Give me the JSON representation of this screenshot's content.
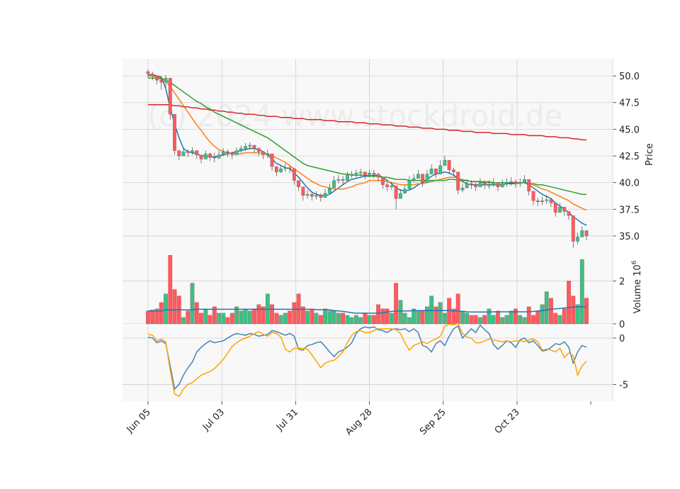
{
  "watermark": "(c) 2024 www.stockdroid.de",
  "colors": {
    "up": "#3dbf85",
    "down": "#ff5a5f",
    "ma_fast": "#1f77b4",
    "ma_mid": "#ff7f0e",
    "ma_slow": "#2ca02c",
    "ma_long": "#d62728",
    "macd": "#4682b4",
    "signal": "#ffa500",
    "vol_avg": "#1f77b4",
    "grid": "#d0d0d0",
    "panel_bg": "#f8f8f8"
  },
  "chart_data": [
    {
      "type": "candlestick",
      "ylabel": "Price",
      "ylim": [
        33.8,
        51.6
      ],
      "yticks": [
        "35.0",
        "37.5",
        "40.0",
        "42.5",
        "45.0",
        "47.5",
        "50.0"
      ],
      "xticks": [
        "Jun 05",
        "Jul 03",
        "Jul 31",
        "Aug 28",
        "Sep 25",
        "Oct 23"
      ],
      "close": [
        50.2,
        50.0,
        49.6,
        49.4,
        49.8,
        46.4,
        43.0,
        42.5,
        42.9,
        42.8,
        43.0,
        42.6,
        42.2,
        42.7,
        42.4,
        42.3,
        42.6,
        42.9,
        42.8,
        42.6,
        43.0,
        43.2,
        43.4,
        43.5,
        43.2,
        42.9,
        42.6,
        42.7,
        41.5,
        41.0,
        41.3,
        41.4,
        41.3,
        40.2,
        39.6,
        38.8,
        38.9,
        38.7,
        38.8,
        38.6,
        39.0,
        39.5,
        40.2,
        40.3,
        40.2,
        40.7,
        40.8,
        40.9,
        41.0,
        40.7,
        40.9,
        40.8,
        40.5,
        39.8,
        39.6,
        39.7,
        38.5,
        39.0,
        39.4,
        40.2,
        40.4,
        40.8,
        40.0,
        40.8,
        41.3,
        40.8,
        41.6,
        42.1,
        41.2,
        41.0,
        39.3,
        39.5,
        39.9,
        39.8,
        39.6,
        40.0,
        39.8,
        39.8,
        40.0,
        39.6,
        39.9,
        40.0,
        40.1,
        39.9,
        40.0,
        40.3,
        39.2,
        38.3,
        38.2,
        38.3,
        38.4,
        38.1,
        37.2,
        37.7,
        37.3,
        36.9,
        34.5,
        34.9,
        35.5,
        35.0
      ],
      "high": [
        50.6,
        50.4,
        50.0,
        49.9,
        50.1,
        46.9,
        43.4,
        42.9,
        43.2,
        43.1,
        43.3,
        42.9,
        42.6,
        43.0,
        42.8,
        42.8,
        43.0,
        43.2,
        43.1,
        42.9,
        43.3,
        43.5,
        43.7,
        43.8,
        43.5,
        43.3,
        42.9,
        43.1,
        41.9,
        41.4,
        41.6,
        41.8,
        41.6,
        40.6,
        40.0,
        39.2,
        39.3,
        39.0,
        39.2,
        39.0,
        39.4,
        39.9,
        40.6,
        40.7,
        40.6,
        41.0,
        41.1,
        41.2,
        41.3,
        41.0,
        41.2,
        41.2,
        40.9,
        40.2,
        40.0,
        40.1,
        38.9,
        39.4,
        39.8,
        40.6,
        40.8,
        41.2,
        40.4,
        41.2,
        41.7,
        41.3,
        42.1,
        42.5,
        41.6,
        41.4,
        39.7,
        39.9,
        40.3,
        40.2,
        40.0,
        40.4,
        40.2,
        40.2,
        40.4,
        40.0,
        40.3,
        40.4,
        40.5,
        40.3,
        40.4,
        40.7,
        39.6,
        38.7,
        38.6,
        38.7,
        38.8,
        38.5,
        37.6,
        38.1,
        37.7,
        37.3,
        35.0,
        35.3,
        35.9,
        35.4
      ],
      "low": [
        49.8,
        49.6,
        49.2,
        48.7,
        48.9,
        45.9,
        42.6,
        42.1,
        42.5,
        42.4,
        42.6,
        42.2,
        41.8,
        42.3,
        42.0,
        41.9,
        42.2,
        42.5,
        42.4,
        42.2,
        42.6,
        42.8,
        43.0,
        43.1,
        42.8,
        42.5,
        42.2,
        42.3,
        41.1,
        40.6,
        40.9,
        41.0,
        40.9,
        39.8,
        39.2,
        38.3,
        38.5,
        38.3,
        38.4,
        38.2,
        38.6,
        39.1,
        39.8,
        39.9,
        39.8,
        40.3,
        40.4,
        40.5,
        40.6,
        40.3,
        40.5,
        40.4,
        40.1,
        39.4,
        39.2,
        39.3,
        37.5,
        38.6,
        39.0,
        39.8,
        40.0,
        40.4,
        39.6,
        40.4,
        40.9,
        40.4,
        41.2,
        41.7,
        40.8,
        40.6,
        38.9,
        39.1,
        39.5,
        39.4,
        39.2,
        39.6,
        39.4,
        39.4,
        39.6,
        39.2,
        39.5,
        39.6,
        39.7,
        39.5,
        39.6,
        39.9,
        38.8,
        37.9,
        37.8,
        37.9,
        38.0,
        37.7,
        36.8,
        37.3,
        36.9,
        36.5,
        33.9,
        34.2,
        35.1,
        34.6
      ],
      "series": [
        {
          "name": "",
          "values": [
            50.1,
            50.1,
            50.0,
            49.9,
            48.8,
            47.0,
            45.5,
            44.2,
            43.2,
            42.9,
            42.8,
            42.7,
            42.5,
            42.5,
            42.4,
            42.4,
            42.5,
            42.6,
            42.7,
            42.8,
            42.9,
            43.0,
            43.1,
            43.2,
            43.2,
            43.1,
            42.9,
            42.6,
            42.2,
            41.8,
            41.6,
            41.4,
            41.3,
            40.9,
            40.5,
            40.0,
            39.5,
            39.1,
            38.9,
            38.8,
            38.8,
            38.9,
            39.2,
            39.5,
            39.8,
            40.1,
            40.3,
            40.4,
            40.5,
            40.6,
            40.6,
            40.7,
            40.7,
            40.5,
            40.2,
            39.9,
            39.5,
            39.3,
            39.2,
            39.3,
            39.5,
            39.8,
            40.0,
            40.3,
            40.6,
            40.8,
            40.9,
            41.0,
            40.9,
            40.7,
            40.4,
            40.1,
            39.9,
            39.8,
            39.8,
            39.8,
            39.8,
            39.8,
            39.8,
            39.8,
            39.8,
            39.9,
            39.9,
            39.9,
            40.0,
            40.0,
            39.8,
            39.5,
            39.2,
            38.9,
            38.7,
            38.5,
            38.1,
            37.8,
            37.5,
            37.2,
            36.8,
            36.5,
            36.2,
            36.0
          ]
        },
        {
          "name": "",
          "values": [
            50.0,
            50.0,
            49.9,
            49.8,
            49.5,
            49.0,
            48.4,
            47.8,
            47.2,
            46.6,
            46.0,
            45.4,
            44.9,
            44.3,
            43.8,
            43.4,
            43.1,
            42.9,
            42.8,
            42.7,
            42.7,
            42.7,
            42.8,
            42.8,
            42.8,
            42.8,
            42.7,
            42.7,
            42.5,
            42.3,
            42.1,
            41.9,
            41.6,
            41.3,
            41.0,
            40.7,
            40.4,
            40.1,
            39.9,
            39.7,
            39.6,
            39.5,
            39.4,
            39.4,
            39.4,
            39.5,
            39.6,
            39.8,
            39.9,
            40.0,
            40.2,
            40.2,
            40.2,
            40.2,
            40.1,
            40.0,
            39.9,
            39.8,
            39.8,
            39.8,
            39.8,
            39.9,
            39.9,
            40.0,
            40.1,
            40.2,
            40.3,
            40.4,
            40.5,
            40.5,
            40.4,
            40.3,
            40.2,
            40.1,
            40.1,
            40.1,
            40.1,
            40.1,
            40.0,
            40.0,
            40.0,
            40.0,
            40.0,
            40.0,
            40.0,
            40.0,
            39.9,
            39.8,
            39.6,
            39.4,
            39.3,
            39.1,
            38.9,
            38.7,
            38.5,
            38.3,
            38.0,
            37.8,
            37.6,
            37.4
          ]
        },
        {
          "name": "",
          "values": [
            49.8,
            49.8,
            49.8,
            49.7,
            49.6,
            49.4,
            49.1,
            48.8,
            48.5,
            48.2,
            47.9,
            47.6,
            47.4,
            47.1,
            46.9,
            46.6,
            46.4,
            46.2,
            46.0,
            45.8,
            45.6,
            45.4,
            45.2,
            45.0,
            44.8,
            44.6,
            44.4,
            44.2,
            43.9,
            43.6,
            43.3,
            43.0,
            42.7,
            42.4,
            42.1,
            41.8,
            41.6,
            41.5,
            41.4,
            41.3,
            41.2,
            41.1,
            41.0,
            40.9,
            40.8,
            40.8,
            40.7,
            40.7,
            40.7,
            40.7,
            40.6,
            40.6,
            40.6,
            40.5,
            40.5,
            40.4,
            40.3,
            40.3,
            40.3,
            40.2,
            40.2,
            40.2,
            40.2,
            40.2,
            40.2,
            40.2,
            40.2,
            40.2,
            40.3,
            40.3,
            40.2,
            40.2,
            40.2,
            40.1,
            40.1,
            40.1,
            40.0,
            40.0,
            40.0,
            40.0,
            40.0,
            40.0,
            40.0,
            40.0,
            40.0,
            40.0,
            39.9,
            39.9,
            39.8,
            39.8,
            39.7,
            39.6,
            39.5,
            39.4,
            39.3,
            39.2,
            39.1,
            39.0,
            38.9,
            38.9
          ]
        },
        {
          "name": "",
          "values": [
            47.3,
            47.3,
            47.3,
            47.3,
            47.3,
            47.3,
            47.2,
            47.2,
            47.1,
            47.1,
            47.0,
            47.0,
            46.9,
            46.9,
            46.8,
            46.8,
            46.7,
            46.7,
            46.6,
            46.6,
            46.5,
            46.5,
            46.4,
            46.4,
            46.4,
            46.3,
            46.3,
            46.2,
            46.2,
            46.2,
            46.1,
            46.1,
            46.1,
            46.0,
            46.0,
            46.0,
            45.9,
            45.9,
            45.9,
            45.9,
            45.8,
            45.8,
            45.8,
            45.7,
            45.7,
            45.7,
            45.7,
            45.6,
            45.6,
            45.6,
            45.5,
            45.5,
            45.5,
            45.4,
            45.4,
            45.4,
            45.3,
            45.3,
            45.3,
            45.2,
            45.2,
            45.2,
            45.1,
            45.1,
            45.1,
            45.0,
            45.0,
            45.0,
            44.9,
            44.9,
            44.9,
            44.8,
            44.8,
            44.8,
            44.7,
            44.7,
            44.7,
            44.7,
            44.6,
            44.6,
            44.6,
            44.6,
            44.5,
            44.5,
            44.5,
            44.5,
            44.4,
            44.4,
            44.4,
            44.4,
            44.3,
            44.3,
            44.3,
            44.2,
            44.2,
            44.2,
            44.1,
            44.1,
            44.0,
            44.0
          ]
        }
      ]
    },
    {
      "type": "bar",
      "ylabel": "Volume  10^6",
      "ylim": [
        0,
        3.5
      ],
      "yticks": [
        "0",
        "2"
      ],
      "values": [
        0.6,
        0.65,
        0.7,
        1.0,
        1.4,
        3.2,
        1.6,
        1.3,
        0.3,
        0.6,
        1.9,
        1.0,
        0.5,
        0.7,
        0.4,
        0.8,
        0.5,
        0.5,
        0.3,
        0.5,
        0.8,
        0.6,
        0.7,
        0.6,
        0.7,
        0.9,
        0.8,
        1.4,
        0.9,
        0.5,
        0.4,
        0.5,
        0.6,
        1.0,
        1.4,
        0.8,
        0.6,
        0.7,
        0.5,
        0.4,
        0.7,
        0.6,
        0.6,
        0.5,
        0.5,
        0.4,
        0.3,
        0.4,
        0.3,
        0.5,
        0.4,
        0.4,
        0.9,
        0.7,
        0.7,
        0.5,
        1.9,
        1.1,
        0.5,
        0.3,
        0.7,
        0.6,
        0.6,
        0.8,
        1.3,
        0.8,
        1.0,
        0.5,
        1.2,
        0.7,
        1.4,
        0.6,
        0.5,
        0.4,
        0.4,
        0.3,
        0.4,
        0.7,
        0.4,
        0.6,
        0.3,
        0.4,
        0.6,
        0.7,
        0.4,
        0.3,
        0.8,
        0.4,
        0.6,
        0.9,
        1.5,
        1.2,
        0.5,
        0.4,
        0.7,
        2.0,
        1.3,
        0.9,
        3.0,
        1.2
      ],
      "series": [
        {
          "name": "",
          "values": [
            0.6,
            0.6,
            0.6,
            0.6,
            0.65,
            0.65,
            0.65,
            0.65,
            0.65,
            0.65,
            0.65,
            0.68,
            0.68,
            0.68,
            0.68,
            0.68,
            0.68,
            0.68,
            0.68,
            0.68,
            0.68,
            0.68,
            0.68,
            0.68,
            0.68,
            0.68,
            0.68,
            0.68,
            0.68,
            0.68,
            0.68,
            0.68,
            0.68,
            0.68,
            0.68,
            0.68,
            0.68,
            0.68,
            0.66,
            0.66,
            0.66,
            0.65,
            0.62,
            0.6,
            0.58,
            0.55,
            0.52,
            0.5,
            0.5,
            0.5,
            0.5,
            0.5,
            0.5,
            0.52,
            0.55,
            0.58,
            0.6,
            0.6,
            0.6,
            0.6,
            0.62,
            0.62,
            0.62,
            0.62,
            0.62,
            0.62,
            0.62,
            0.62,
            0.62,
            0.6,
            0.6,
            0.58,
            0.56,
            0.55,
            0.55,
            0.55,
            0.55,
            0.55,
            0.56,
            0.56,
            0.56,
            0.56,
            0.56,
            0.56,
            0.56,
            0.56,
            0.56,
            0.58,
            0.6,
            0.62,
            0.65,
            0.68,
            0.7,
            0.72,
            0.74,
            0.76,
            0.78,
            0.8,
            0.8,
            0.78
          ]
        }
      ]
    },
    {
      "type": "line",
      "ylim": [
        -6.8,
        1.3
      ],
      "yticks": [
        "-5",
        "0"
      ],
      "series": [
        {
          "name": "",
          "values": [
            0.1,
            0.0,
            -0.5,
            -0.3,
            -0.6,
            -3.0,
            -5.5,
            -5.0,
            -4.0,
            -3.2,
            -2.6,
            -1.5,
            -1.0,
            -0.6,
            -0.3,
            -0.5,
            -0.4,
            -0.3,
            0.0,
            0.3,
            0.5,
            0.4,
            0.3,
            0.5,
            0.4,
            0.2,
            0.3,
            0.4,
            0.8,
            0.7,
            0.5,
            0.3,
            0.5,
            0.2,
            -1.2,
            -1.3,
            -0.8,
            -0.7,
            -0.5,
            -0.4,
            -0.9,
            -1.5,
            -2.0,
            -1.5,
            -1.3,
            -1.0,
            -0.5,
            0.5,
            1.0,
            1.2,
            1.1,
            1.2,
            0.9,
            0.8,
            0.6,
            0.9,
            1.0,
            0.9,
            1.0,
            0.7,
            1.0,
            0.6,
            -0.8,
            -1.0,
            -1.5,
            -0.6,
            -0.3,
            -0.8,
            0.2,
            1.0,
            1.3,
            0.0,
            0.5,
            1.0,
            0.6,
            1.4,
            0.9,
            0.5,
            -0.7,
            -1.2,
            -0.8,
            -0.3,
            -0.5,
            -1.0,
            -0.2,
            0.0,
            -0.5,
            -0.3,
            -0.8,
            -1.4,
            -1.3,
            -1.0,
            -0.6,
            -0.7,
            -0.4,
            -1.0,
            -2.7,
            -1.5,
            -0.8,
            -1.0
          ]
        },
        {
          "name": "",
          "values": [
            0.4,
            0.3,
            -0.3,
            -0.1,
            -0.4,
            -3.5,
            -6.0,
            -6.3,
            -5.5,
            -5.0,
            -4.8,
            -4.4,
            -4.0,
            -3.8,
            -3.6,
            -3.3,
            -2.8,
            -2.3,
            -1.6,
            -0.9,
            -0.5,
            -0.2,
            0.0,
            0.2,
            0.5,
            0.7,
            0.4,
            0.2,
            0.6,
            0.5,
            0.1,
            -1.2,
            -1.5,
            -1.1,
            -1.1,
            -1.1,
            -1.2,
            -1.8,
            -2.5,
            -3.2,
            -2.7,
            -2.5,
            -2.4,
            -2.0,
            -1.5,
            -0.5,
            0.3,
            0.7,
            0.8,
            0.6,
            0.6,
            0.8,
            1.0,
            1.0,
            1.0,
            1.0,
            0.9,
            0.5,
            -0.5,
            -1.3,
            -0.8,
            -0.6,
            -0.4,
            -0.6,
            -0.3,
            -0.1,
            0.2,
            1.3,
            1.5,
            1.4,
            1.6,
            0.5,
            0.1,
            0.0,
            -0.5,
            -0.5,
            -0.3,
            -0.1,
            -0.2,
            -0.3,
            -0.4,
            -0.3,
            -0.4,
            -0.3,
            -0.3,
            -0.4,
            -0.2,
            -0.1,
            -0.4,
            -1.3,
            -1.2,
            -1.3,
            -1.5,
            -1.1,
            -2.1,
            -1.6,
            -1.9,
            -4.0,
            -3.0,
            -2.5
          ]
        }
      ]
    }
  ]
}
